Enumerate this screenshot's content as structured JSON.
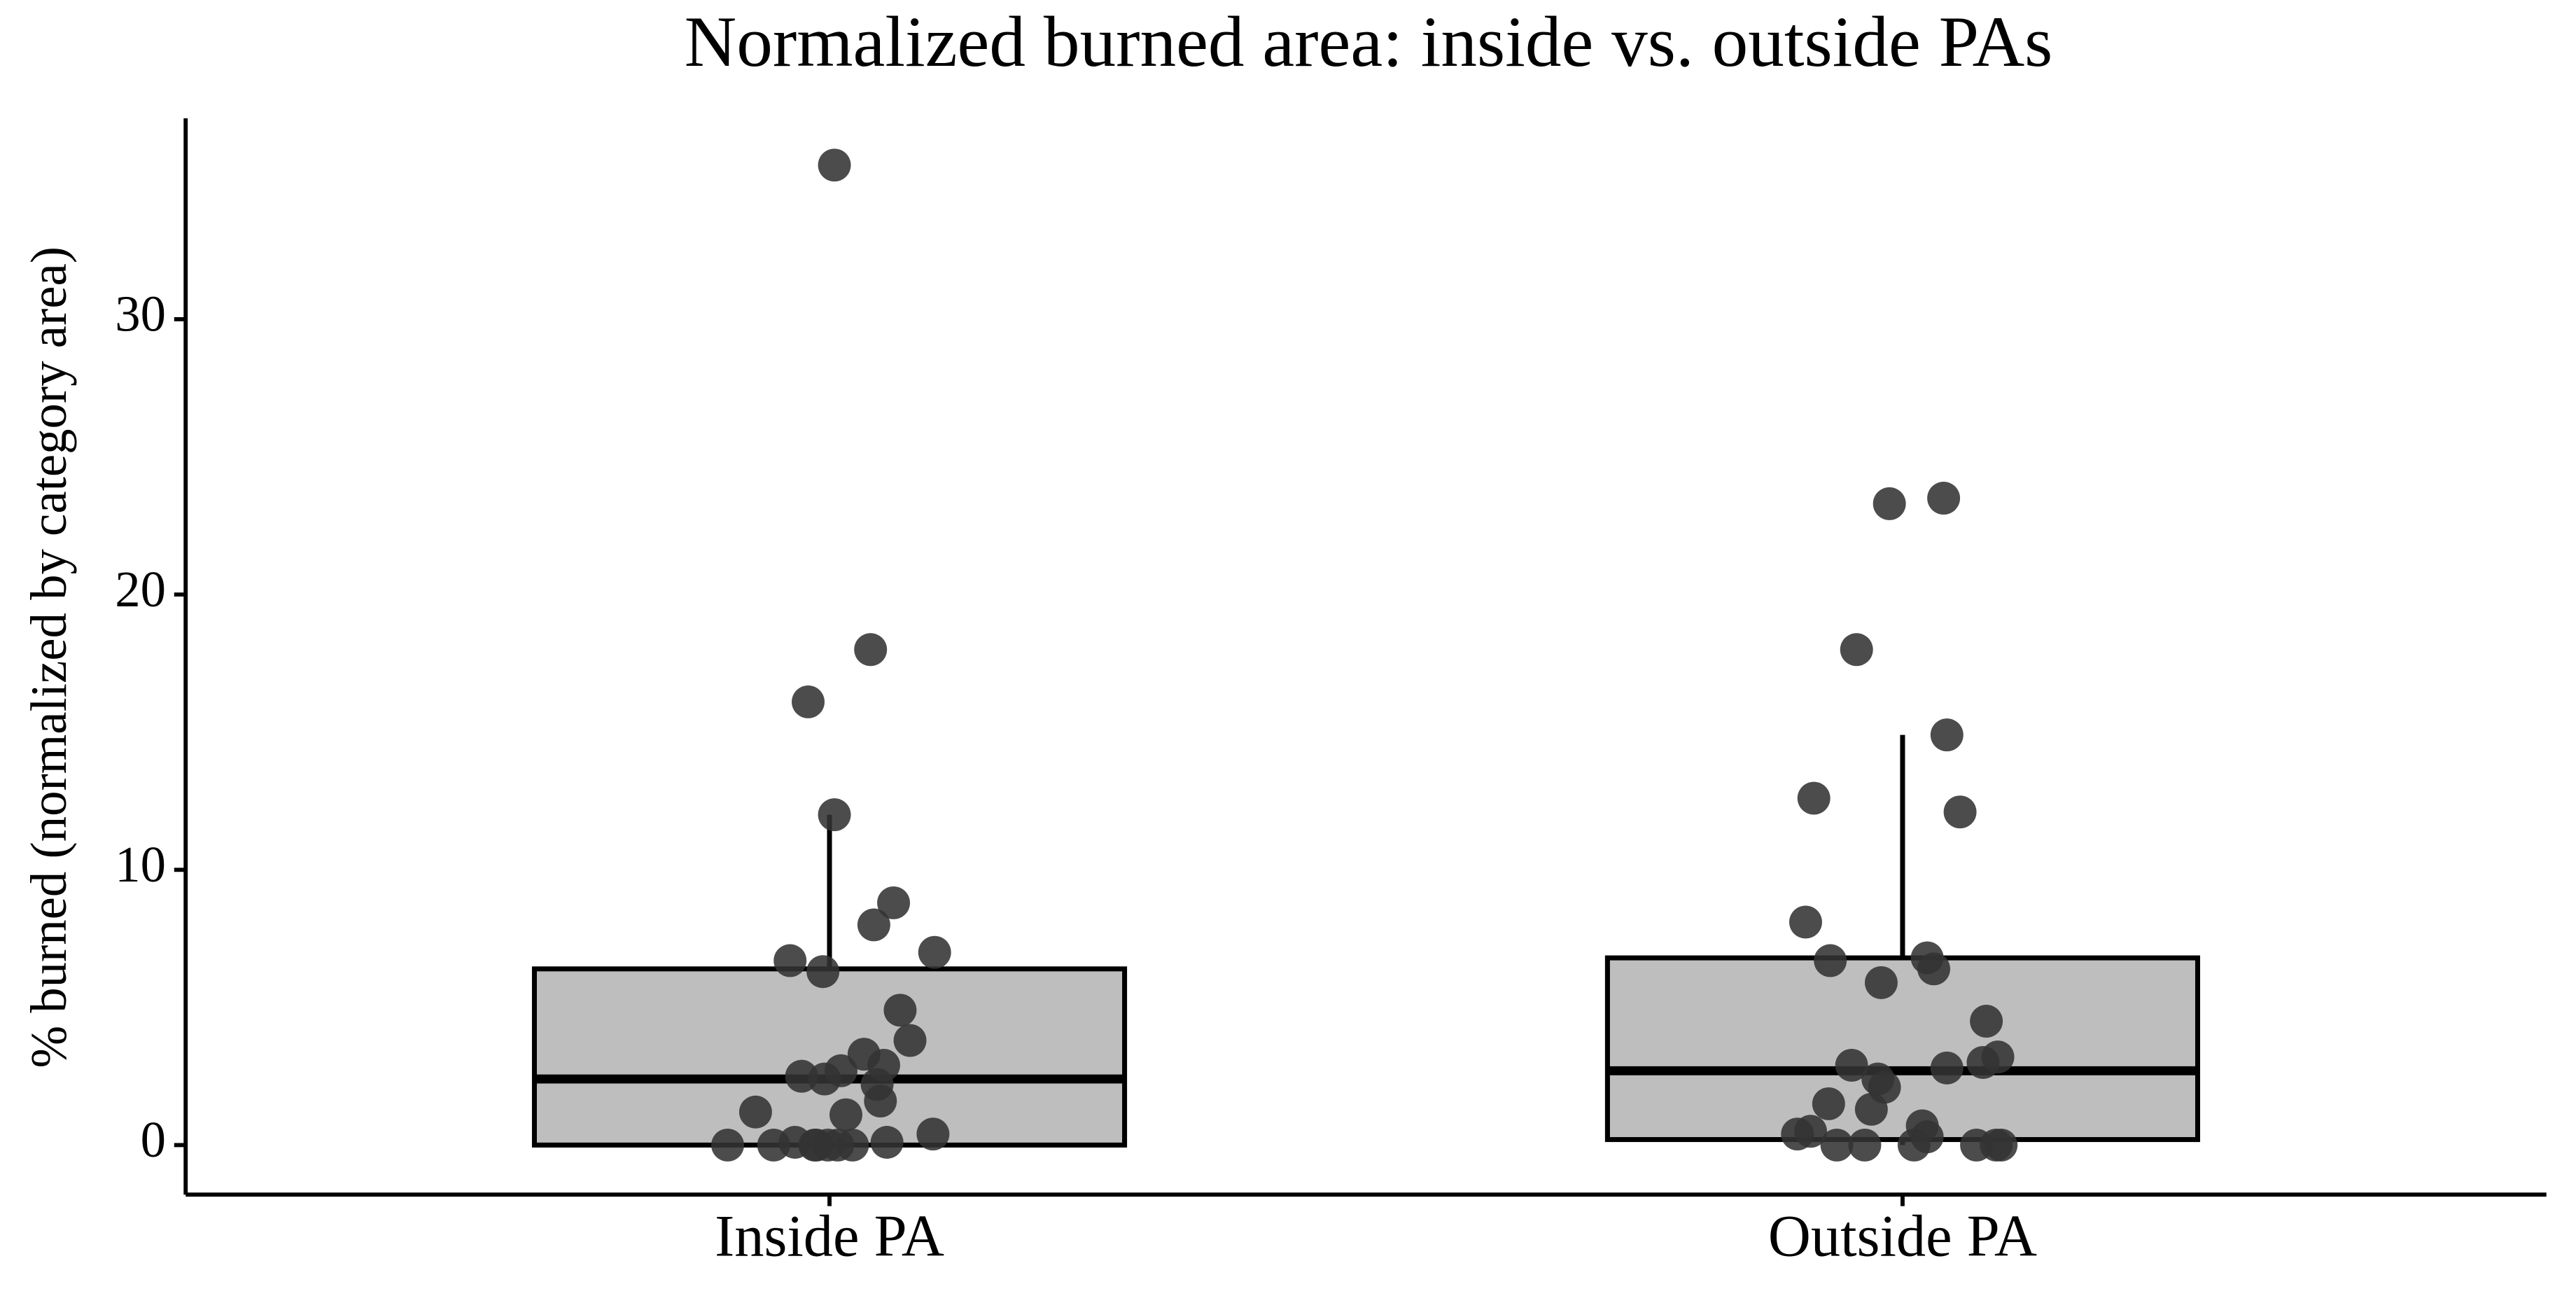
{
  "chart_data": {
    "type": "box",
    "title": "Normalized burned area: inside vs. outside PAs",
    "y_label": "% burned (normalized by category area)",
    "categories": [
      "Inside PA",
      "Outside PA"
    ],
    "boxes": [
      {
        "whisker_low": 0,
        "q1": 0,
        "median": 2.4,
        "q3": 6.4,
        "whisker_high": 12
      },
      {
        "whisker_low": 0,
        "q1": 0.2,
        "median": 2.7,
        "q3": 6.8,
        "whisker_high": 14.9
      }
    ],
    "points": [
      [
        35.6,
        18,
        16.1,
        12,
        8.8,
        8,
        7,
        6.7,
        6.3,
        4.9,
        3.8,
        3.3,
        2.9,
        2.7,
        2.5,
        2.4,
        2.2,
        1.6,
        1.2,
        1.1,
        0.4,
        0.1,
        0.1,
        0,
        0,
        0,
        0,
        0,
        0,
        0
      ],
      [
        23.5,
        23.3,
        18,
        14.9,
        12.6,
        12.1,
        8.1,
        6.8,
        6.7,
        6.4,
        5.9,
        4.5,
        3.2,
        3.0,
        2.9,
        2.8,
        2.4,
        2.1,
        1.5,
        1.3,
        0.7,
        0.5,
        0.4,
        0.3,
        0,
        0,
        0,
        0,
        0,
        0
      ]
    ],
    "box_color": "#bebebe",
    "point_color": "#333333",
    "ylim": [
      -1.8,
      37.3
    ],
    "yticks": [
      0,
      10,
      20,
      30
    ]
  }
}
